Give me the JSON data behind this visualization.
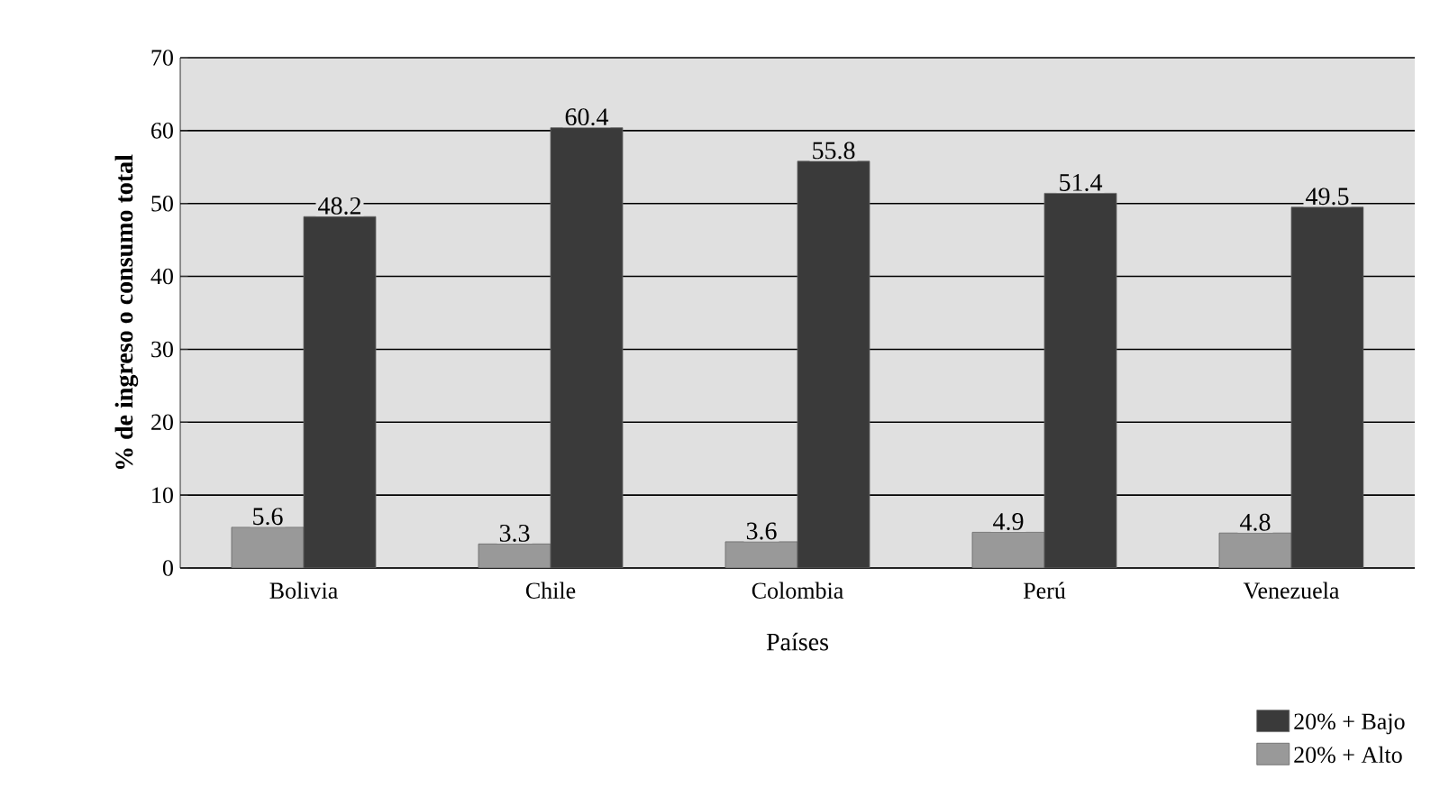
{
  "chart_data": {
    "type": "bar",
    "xlabel": "Países",
    "ylabel": "% de ingreso o consumo total",
    "categories": [
      "Bolivia",
      "Chile",
      "Colombia",
      "Perú",
      "Venezuela"
    ],
    "series": [
      {
        "name": "20% + Alto",
        "color": "#999999",
        "values": [
          5.6,
          3.3,
          3.6,
          4.9,
          4.8
        ]
      },
      {
        "name": "20% + Bajo",
        "color": "#3a3a3a",
        "values": [
          48.2,
          60.4,
          55.8,
          51.4,
          49.5
        ]
      }
    ],
    "ylim": [
      0,
      70
    ],
    "yticks": [
      0,
      10,
      20,
      30,
      40,
      50,
      60,
      70
    ],
    "grid": "y",
    "legend": "bottom right",
    "data_labels": true
  }
}
